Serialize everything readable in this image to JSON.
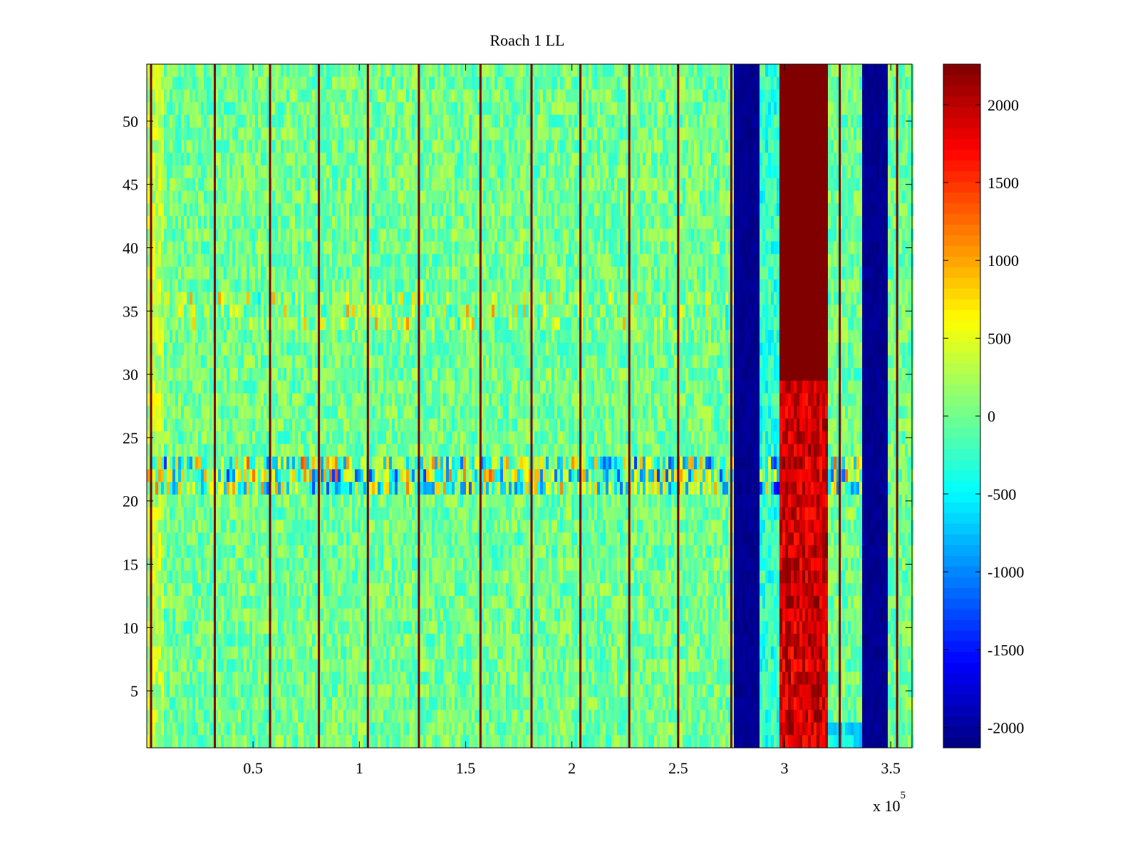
{
  "chart_data": {
    "type": "heatmap",
    "title": "Roach 1 LL",
    "xlabel": "",
    "ylabel": "",
    "x_multiplier_label": {
      "base": "x 10",
      "exponent": "5"
    },
    "xlim": [
      0,
      360000
    ],
    "ylim": [
      0.5,
      54.5
    ],
    "x_ticks": [
      {
        "value": 50000,
        "label": "0.5"
      },
      {
        "value": 100000,
        "label": "1"
      },
      {
        "value": 150000,
        "label": "1.5"
      },
      {
        "value": 200000,
        "label": "2"
      },
      {
        "value": 250000,
        "label": "2.5"
      },
      {
        "value": 300000,
        "label": "3"
      },
      {
        "value": 350000,
        "label": "3.5"
      }
    ],
    "y_ticks": [
      5,
      10,
      15,
      20,
      25,
      30,
      35,
      40,
      45,
      50
    ],
    "colormap": "jet",
    "clim": [
      -2130,
      2260
    ],
    "colorbar_ticks": [
      -2000,
      -1500,
      -1000,
      -500,
      0,
      500,
      1000,
      1500,
      2000
    ],
    "rows": 54,
    "background_level": 0,
    "vertical_spikes_x": [
      2000,
      32000,
      58000,
      81000,
      104000,
      128000,
      157000,
      181000,
      204000,
      227000,
      250000,
      275000,
      326000,
      353000
    ],
    "bands": [
      {
        "x_start": 276000,
        "x_end": 288000,
        "value": -2130
      },
      {
        "x_start": 297000,
        "x_end": 321000,
        "value": 2260
      },
      {
        "x_start": 336000,
        "x_end": 348000,
        "value": -2130
      }
    ],
    "grid": false,
    "legend": "colorbar-right"
  }
}
